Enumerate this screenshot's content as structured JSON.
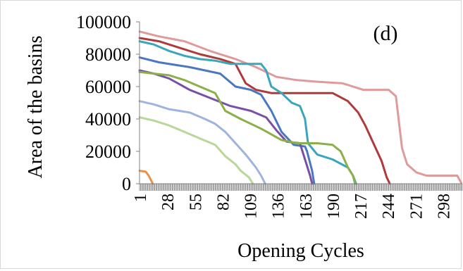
{
  "chart_data": {
    "type": "line",
    "panel_label": "(d)",
    "xlabel": "Opening Cycles",
    "ylabel": "Area of the basins",
    "xlim": [
      1,
      317
    ],
    "ylim": [
      0,
      100000
    ],
    "x_tick_labels": [
      "1",
      "28",
      "55",
      "82",
      "109",
      "136",
      "163",
      "190",
      "217",
      "244",
      "271",
      "298"
    ],
    "y_tick_labels": [
      "0",
      "20000",
      "40000",
      "60000",
      "80000",
      "100000"
    ],
    "grid": false,
    "legend": "none",
    "series": [
      {
        "color": "#e09a9a",
        "points": [
          [
            1,
            94000
          ],
          [
            20,
            91000
          ],
          [
            45,
            88000
          ],
          [
            70,
            82000
          ],
          [
            95,
            77000
          ],
          [
            115,
            72000
          ],
          [
            135,
            66000
          ],
          [
            155,
            64000
          ],
          [
            175,
            63000
          ],
          [
            200,
            62000
          ],
          [
            220,
            58000
          ],
          [
            245,
            58000
          ],
          [
            252,
            54000
          ],
          [
            258,
            22000
          ],
          [
            263,
            12000
          ],
          [
            272,
            7000
          ],
          [
            282,
            5000
          ],
          [
            300,
            5000
          ],
          [
            312,
            5000
          ],
          [
            316,
            500
          ]
        ]
      },
      {
        "color": "#b03a3a",
        "points": [
          [
            1,
            90000
          ],
          [
            20,
            88000
          ],
          [
            40,
            84000
          ],
          [
            60,
            80000
          ],
          [
            80,
            77000
          ],
          [
            95,
            74000
          ],
          [
            105,
            62000
          ],
          [
            115,
            58000
          ],
          [
            130,
            56000
          ],
          [
            160,
            56000
          ],
          [
            190,
            56000
          ],
          [
            205,
            51000
          ],
          [
            215,
            44000
          ],
          [
            222,
            36000
          ],
          [
            230,
            25000
          ],
          [
            238,
            14000
          ],
          [
            243,
            4000
          ],
          [
            246,
            0
          ]
        ]
      },
      {
        "color": "#3aa6bd",
        "points": [
          [
            1,
            88000
          ],
          [
            15,
            86000
          ],
          [
            30,
            82000
          ],
          [
            45,
            79000
          ],
          [
            60,
            77000
          ],
          [
            75,
            76000
          ],
          [
            90,
            74000
          ],
          [
            120,
            74000
          ],
          [
            125,
            70000
          ],
          [
            130,
            60000
          ],
          [
            140,
            56000
          ],
          [
            150,
            50000
          ],
          [
            158,
            48000
          ],
          [
            163,
            40000
          ],
          [
            166,
            25000
          ],
          [
            175,
            18000
          ],
          [
            190,
            15000
          ],
          [
            205,
            10000
          ],
          [
            210,
            5000
          ],
          [
            213,
            0
          ]
        ]
      },
      {
        "color": "#4a78c0",
        "points": [
          [
            1,
            78000
          ],
          [
            20,
            75000
          ],
          [
            50,
            72000
          ],
          [
            80,
            68000
          ],
          [
            95,
            60000
          ],
          [
            110,
            58000
          ],
          [
            120,
            55000
          ],
          [
            130,
            45000
          ],
          [
            140,
            32000
          ],
          [
            152,
            24000
          ],
          [
            163,
            23000
          ],
          [
            165,
            20000
          ],
          [
            170,
            8000
          ],
          [
            172,
            0
          ]
        ]
      },
      {
        "color": "#7a4fa8",
        "points": [
          [
            1,
            70000
          ],
          [
            15,
            68000
          ],
          [
            30,
            65000
          ],
          [
            50,
            58000
          ],
          [
            70,
            53000
          ],
          [
            90,
            48000
          ],
          [
            110,
            45000
          ],
          [
            125,
            41000
          ],
          [
            135,
            33000
          ],
          [
            145,
            26000
          ],
          [
            158,
            25000
          ],
          [
            163,
            15000
          ],
          [
            168,
            5000
          ],
          [
            170,
            0
          ]
        ]
      },
      {
        "color": "#8bb04a",
        "points": [
          [
            1,
            69000
          ],
          [
            15,
            68000
          ],
          [
            30,
            67000
          ],
          [
            45,
            64000
          ],
          [
            60,
            60000
          ],
          [
            75,
            56000
          ],
          [
            85,
            45000
          ],
          [
            100,
            40000
          ],
          [
            120,
            34000
          ],
          [
            140,
            27000
          ],
          [
            155,
            25000
          ],
          [
            175,
            25000
          ],
          [
            190,
            24000
          ],
          [
            198,
            20000
          ],
          [
            205,
            10000
          ],
          [
            210,
            5000
          ],
          [
            212,
            0
          ]
        ]
      },
      {
        "color": "#9fb4dd",
        "points": [
          [
            1,
            51000
          ],
          [
            15,
            49000
          ],
          [
            30,
            46000
          ],
          [
            50,
            44000
          ],
          [
            65,
            40000
          ],
          [
            75,
            37000
          ],
          [
            85,
            32000
          ],
          [
            95,
            25000
          ],
          [
            105,
            18000
          ],
          [
            115,
            10000
          ],
          [
            120,
            5000
          ],
          [
            124,
            0
          ]
        ]
      },
      {
        "color": "#b8d89a",
        "points": [
          [
            1,
            41000
          ],
          [
            15,
            39000
          ],
          [
            30,
            36000
          ],
          [
            45,
            32000
          ],
          [
            60,
            28000
          ],
          [
            75,
            24000
          ],
          [
            85,
            17000
          ],
          [
            95,
            12000
          ],
          [
            100,
            8000
          ],
          [
            108,
            4000
          ],
          [
            112,
            0
          ]
        ]
      },
      {
        "color": "#e8914a",
        "points": [
          [
            1,
            8000
          ],
          [
            7,
            7500
          ],
          [
            10,
            5000
          ],
          [
            14,
            0
          ]
        ]
      }
    ]
  }
}
